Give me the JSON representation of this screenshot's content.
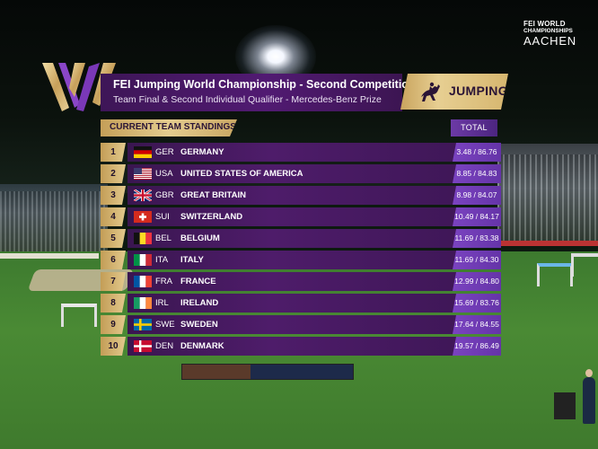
{
  "logo": {
    "line1": "FEI WORLD",
    "line2": "CHAMPIONSHIPS",
    "line3": "AACHEN"
  },
  "header": {
    "title": "FEI Jumping World Championship - Second Competition",
    "subtitle": "Team Final & Second Individual Qualifier - Mercedes-Benz Prize",
    "discipline": "JUMPING",
    "discipline_icon": "horse-jumping-icon"
  },
  "table": {
    "section_label": "CURRENT TEAM STANDINGS",
    "total_label": "TOTAL",
    "rows": [
      {
        "rank": "1",
        "code": "GER",
        "name": "GERMANY",
        "total": "3.48 /  86.76"
      },
      {
        "rank": "2",
        "code": "USA",
        "name": "UNITED STATES OF AMERICA",
        "total": "8.85 /  84.83"
      },
      {
        "rank": "3",
        "code": "GBR",
        "name": "GREAT BRITAIN",
        "total": "8.98 /  84.07"
      },
      {
        "rank": "4",
        "code": "SUI",
        "name": "SWITZERLAND",
        "total": "10.49 /  84.17"
      },
      {
        "rank": "5",
        "code": "BEL",
        "name": "BELGIUM",
        "total": "11.69 /  83.38"
      },
      {
        "rank": "6",
        "code": "ITA",
        "name": "ITALY",
        "total": "11.69 /  84.30"
      },
      {
        "rank": "7",
        "code": "FRA",
        "name": "FRANCE",
        "total": "12.99 /  84.80"
      },
      {
        "rank": "8",
        "code": "IRL",
        "name": "IRELAND",
        "total": "15.69 /  83.76"
      },
      {
        "rank": "9",
        "code": "SWE",
        "name": "SWEDEN",
        "total": "17.64 /  84.55"
      },
      {
        "rank": "10",
        "code": "DEN",
        "name": "DENMARK",
        "total": "19.57 /  86.49"
      }
    ]
  },
  "colors": {
    "band_purple": "#4e1c6a",
    "gold": "#d9bc7a",
    "total_purple": "#7a43c0"
  }
}
